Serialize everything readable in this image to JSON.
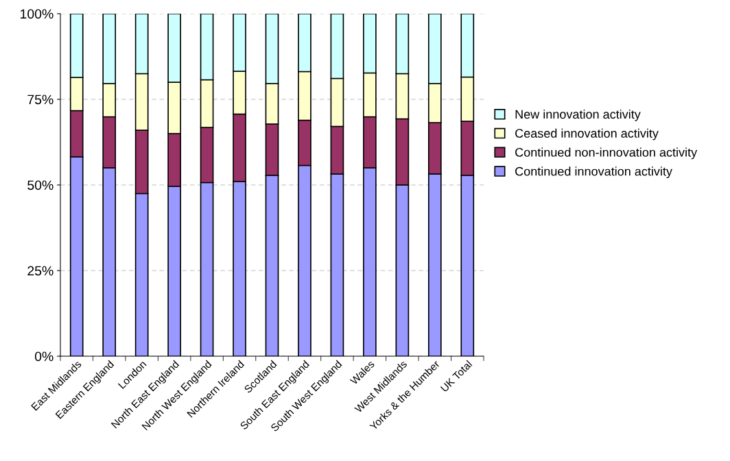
{
  "chart_data": {
    "type": "bar",
    "stacked": true,
    "categories": [
      "East Midlands",
      "Eastern England",
      "London",
      "North East England",
      "North West England",
      "Northern Ireland",
      "Scotland",
      "South East England",
      "South West England",
      "Wales",
      "West Midlands",
      "Yorks & the Humber",
      "UK Total"
    ],
    "series": [
      {
        "name": "Continued innovation activity",
        "color": "#9999ff",
        "values": [
          58.2,
          55.0,
          47.5,
          49.6,
          50.7,
          51.0,
          52.8,
          55.7,
          53.2,
          55.0,
          50.0,
          53.2,
          52.8
        ]
      },
      {
        "name": "Continued non-innovation activity",
        "color": "#993366",
        "values": [
          13.5,
          14.9,
          18.5,
          15.4,
          16.1,
          19.7,
          15.0,
          13.2,
          13.9,
          14.9,
          19.3,
          15.0,
          15.8
        ]
      },
      {
        "name": "Ceased innovation activity",
        "color": "#ffffcc",
        "values": [
          9.7,
          9.7,
          16.5,
          15.0,
          13.9,
          12.5,
          11.8,
          14.2,
          14.0,
          12.8,
          13.2,
          11.4,
          12.9
        ]
      },
      {
        "name": "New innovation activity",
        "color": "#ccffff",
        "values": [
          18.6,
          20.4,
          17.5,
          20.0,
          19.3,
          16.8,
          20.4,
          16.9,
          18.9,
          17.3,
          17.5,
          20.4,
          18.5
        ]
      }
    ],
    "ylim": [
      0,
      100
    ],
    "yticks": [
      {
        "value": 0,
        "label": "0%"
      },
      {
        "value": 25,
        "label": "25%"
      },
      {
        "value": 50,
        "label": "50%"
      },
      {
        "value": 75,
        "label": "75%"
      },
      {
        "value": 100,
        "label": "100%"
      }
    ],
    "grid": "y",
    "legend": "right"
  }
}
